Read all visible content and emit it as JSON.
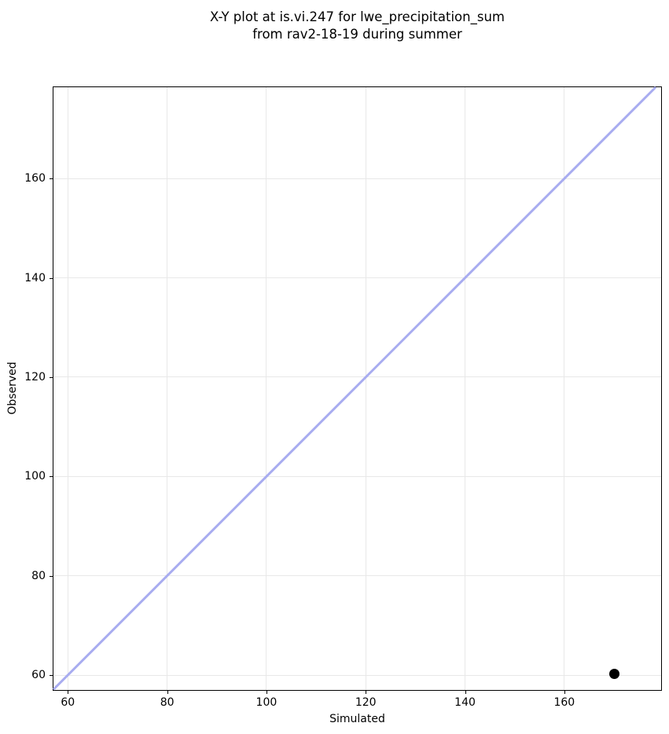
{
  "chart_data": {
    "type": "scatter",
    "title": "X-Y plot at is.vi.247 for lwe_precipitation_sum from rav2-18-19 during summer",
    "title_lines": [
      "X-Y plot at is.vi.247 for lwe_precipitation_sum",
      "from rav2-18-19 during summer"
    ],
    "xlabel": "Simulated",
    "ylabel": "Observed",
    "xlim": [
      57.1,
      179.5
    ],
    "ylim": [
      57.0,
      178.4
    ],
    "xticks": [
      60,
      80,
      100,
      120,
      140,
      160
    ],
    "yticks": [
      60,
      80,
      100,
      120,
      140,
      160
    ],
    "grid": true,
    "grid_color": "#e8e8e8",
    "background_color": "#ffffff",
    "spine_color": "#000000",
    "text_color": "#000000",
    "series": [
      {
        "name": "data-points",
        "type": "scatter",
        "color": "#000000",
        "marker_size": 13,
        "points": [
          {
            "x": 170.1,
            "y": 60.3
          }
        ]
      }
    ],
    "reference_line": {
      "kind": "identity",
      "color": "#a8acf0",
      "width": 3
    },
    "legend": null
  }
}
